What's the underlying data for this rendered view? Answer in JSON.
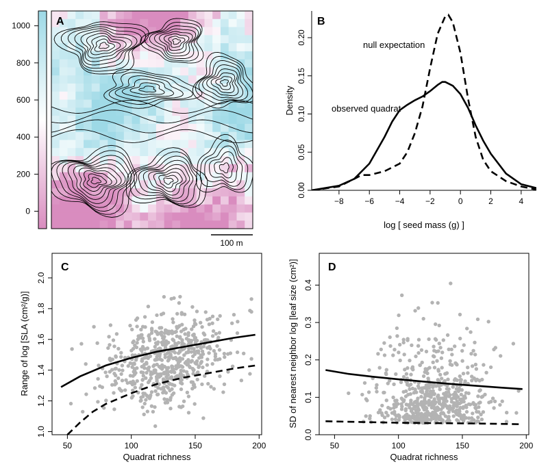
{
  "colors": {
    "low": "#d98cbf",
    "mid": "#ffffff",
    "high": "#9dd9e6",
    "points": "#b3b3b3",
    "lines": "#000000"
  },
  "panels": {
    "A": {
      "label": "A",
      "colorbar_ticks": [
        "0",
        "200",
        "400",
        "600",
        "800",
        "1000"
      ],
      "scale_bar_label": "100 m",
      "chart_data": {
        "type": "heatmap",
        "title": "",
        "xlabel": "",
        "ylabel": "",
        "scale": [
          0,
          1100
        ],
        "scale_bar": "100 m",
        "contours": true
      }
    },
    "B": {
      "label": "B",
      "chart_data": {
        "type": "line",
        "xlabel": "log [ seed mass (g) ]",
        "ylabel": "Density",
        "xlim": [
          -9.8,
          5
        ],
        "ylim": [
          0,
          0.235
        ],
        "xticks": [
          "−8",
          "−6",
          "−4",
          "−2",
          "0",
          "2",
          "4"
        ],
        "yticks": [
          "0.00",
          "0.05",
          "0.10",
          "0.15",
          "0.20"
        ],
        "series": [
          {
            "name": "observed quadrat",
            "style": "solid",
            "x": [
              -9.8,
              -8,
              -7,
              -6,
              -5,
              -4.5,
              -4,
              -3.5,
              -3,
              -2.5,
              -2,
              -1.5,
              -1.2,
              -1,
              -0.5,
              0,
              0.5,
              1,
              1.5,
              2,
              3,
              4,
              5
            ],
            "y": [
              0.0,
              0.006,
              0.015,
              0.035,
              0.07,
              0.09,
              0.105,
              0.112,
              0.118,
              0.123,
              0.13,
              0.138,
              0.142,
              0.142,
              0.137,
              0.126,
              0.108,
              0.085,
              0.065,
              0.048,
              0.022,
              0.008,
              0.003
            ]
          },
          {
            "name": "null expectation",
            "style": "dashed",
            "x": [
              -9.8,
              -8,
              -7,
              -6.5,
              -6,
              -5,
              -4,
              -3.5,
              -3,
              -2.5,
              -2,
              -1.5,
              -1,
              -0.8,
              -0.5,
              0,
              0.5,
              1,
              1.5,
              2,
              3,
              4,
              5
            ],
            "y": [
              0.0,
              0.005,
              0.015,
              0.02,
              0.02,
              0.025,
              0.035,
              0.05,
              0.075,
              0.11,
              0.16,
              0.205,
              0.228,
              0.23,
              0.22,
              0.18,
              0.12,
              0.07,
              0.04,
              0.025,
              0.012,
              0.005,
              0.001
            ]
          }
        ]
      }
    },
    "C": {
      "label": "C",
      "chart_data": {
        "type": "scatter",
        "xlabel": "Quadrat richness",
        "ylabel": "Range of log [SLA (cm²/g)]",
        "xlim": [
          38,
          202
        ],
        "ylim": [
          0.98,
          2.16
        ],
        "xticks": [
          "50",
          "100",
          "150",
          "200"
        ],
        "yticks": [
          "1.0",
          "1.2",
          "1.4",
          "1.6",
          "1.8",
          "2.0"
        ],
        "points_summary": {
          "n": 600,
          "x_mean": 127,
          "x_sd": 22,
          "y_mean": 1.46,
          "y_sd": 0.15
        },
        "series": [
          {
            "name": "",
            "style": "solid",
            "x": [
              45,
              60,
              80,
              100,
              120,
              140,
              160,
              180,
              197
            ],
            "y": [
              1.29,
              1.36,
              1.43,
              1.48,
              1.52,
              1.55,
              1.58,
              1.61,
              1.63
            ]
          },
          {
            "name": "",
            "style": "dashed",
            "x": [
              50,
              60,
              70,
              80,
              100,
              120,
              140,
              160,
              180,
              197
            ],
            "y": [
              0.98,
              1.06,
              1.13,
              1.18,
              1.25,
              1.31,
              1.35,
              1.38,
              1.41,
              1.43
            ]
          }
        ]
      }
    },
    "D": {
      "label": "D",
      "chart_data": {
        "type": "scatter",
        "xlabel": "Quadrat richness",
        "ylabel": "SD of nearest neighbor log [leaf size (cm²)]",
        "xlim": [
          38,
          202
        ],
        "ylim": [
          0,
          0.485
        ],
        "xticks": [
          "50",
          "100",
          "150",
          "200"
        ],
        "yticks": [
          "0.0",
          "0.1",
          "0.2",
          "0.3",
          "0.4"
        ],
        "points_summary": {
          "n": 600,
          "x_mean": 127,
          "x_sd": 22,
          "y_mean": 0.12,
          "y_sd": 0.07
        },
        "series": [
          {
            "name": "",
            "style": "solid",
            "x": [
              43,
              60,
              80,
              100,
              120,
              140,
              160,
              180,
              197
            ],
            "y": [
              0.173,
              0.163,
              0.155,
              0.148,
              0.142,
              0.136,
              0.131,
              0.126,
              0.122
            ]
          },
          {
            "name": "",
            "style": "dashed",
            "x": [
              43,
              70,
              100,
              130,
              160,
              197
            ],
            "y": [
              0.036,
              0.034,
              0.032,
              0.031,
              0.03,
              0.028
            ]
          }
        ]
      }
    }
  }
}
